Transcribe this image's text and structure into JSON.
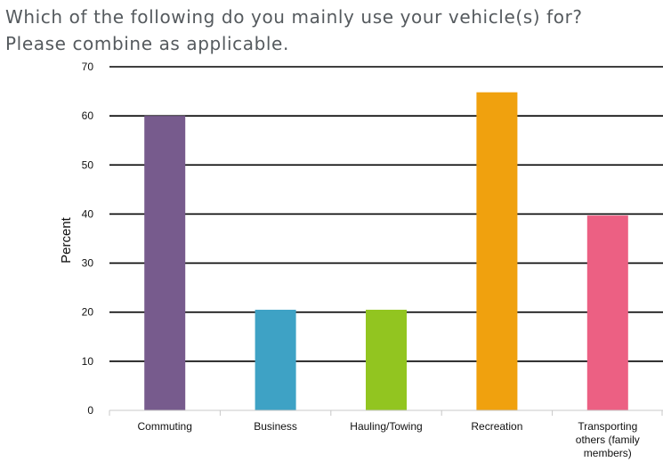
{
  "title": {
    "line1": "Which of the following do you mainly use your vehicle(s) for?",
    "line2": "Please combine as applicable."
  },
  "chart_data": {
    "type": "bar",
    "categories": [
      [
        "Commuting"
      ],
      [
        "Business"
      ],
      [
        "Hauling/Towing"
      ],
      [
        "Recreation"
      ],
      [
        "Transporting",
        "others (family",
        "members)"
      ]
    ],
    "values": [
      60,
      20.5,
      20.5,
      64.8,
      39.7
    ],
    "colors": [
      "#775b8d",
      "#3ea2c5",
      "#92c520",
      "#f0a10e",
      "#ec6083"
    ],
    "xlabel": "",
    "ylabel": "Percent",
    "ylim": [
      0,
      70
    ],
    "yticks": [
      0,
      10,
      20,
      30,
      40,
      50,
      60,
      70
    ],
    "grid": true,
    "legend": "none"
  }
}
